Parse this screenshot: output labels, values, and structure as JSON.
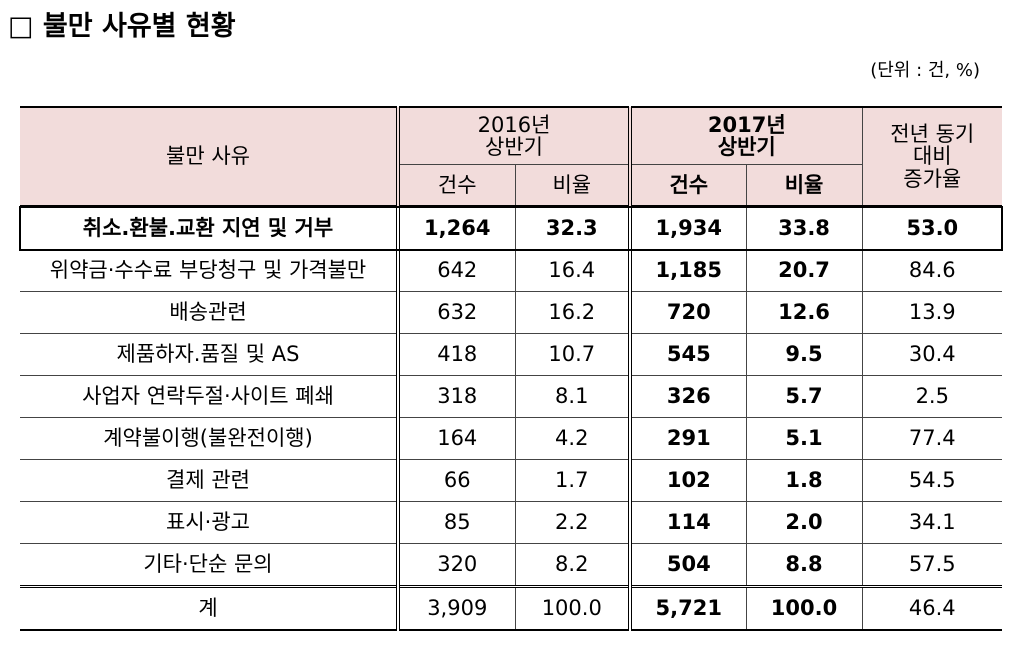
{
  "title": "□ 불만 사유별 현황",
  "unit": "(단위 : 건, %)",
  "table": {
    "header": {
      "reason": "불만 사유",
      "groups": [
        [
          "2016년",
          "상반기"
        ],
        [
          "2017년",
          "상반기"
        ]
      ],
      "sub": [
        "건수",
        "비율",
        "건수",
        "비율"
      ],
      "growth": [
        "전년 동기",
        "대비",
        "증가율"
      ]
    },
    "rows": [
      [
        "취소.환불.교환 지연 및 거부",
        "1,264",
        "32.3",
        "1,934",
        "33.8",
        "53.0"
      ],
      [
        "위약금·수수료 부당청구 및 가격불만",
        "642",
        "16.4",
        "1,185",
        "20.7",
        "84.6"
      ],
      [
        "배송관련",
        "632",
        "16.2",
        "720",
        "12.6",
        "13.9"
      ],
      [
        "제품하자.품질 및 AS",
        "418",
        "10.7",
        "545",
        "9.5",
        "30.4"
      ],
      [
        "사업자 연락두절·사이트 폐쇄",
        "318",
        "8.1",
        "326",
        "5.7",
        "2.5"
      ],
      [
        "계약불이행(불완전이행)",
        "164",
        "4.2",
        "291",
        "5.1",
        "77.4"
      ],
      [
        "결제 관련",
        "66",
        "1.7",
        "102",
        "1.8",
        "54.5"
      ],
      [
        "표시·광고",
        "85",
        "2.2",
        "114",
        "2.0",
        "34.1"
      ],
      [
        "기타·단순 문의",
        "320",
        "8.2",
        "504",
        "8.8",
        "57.5"
      ]
    ],
    "total": [
      "계",
      "3,909",
      "100.0",
      "5,721",
      "100.0",
      "46.4"
    ]
  }
}
